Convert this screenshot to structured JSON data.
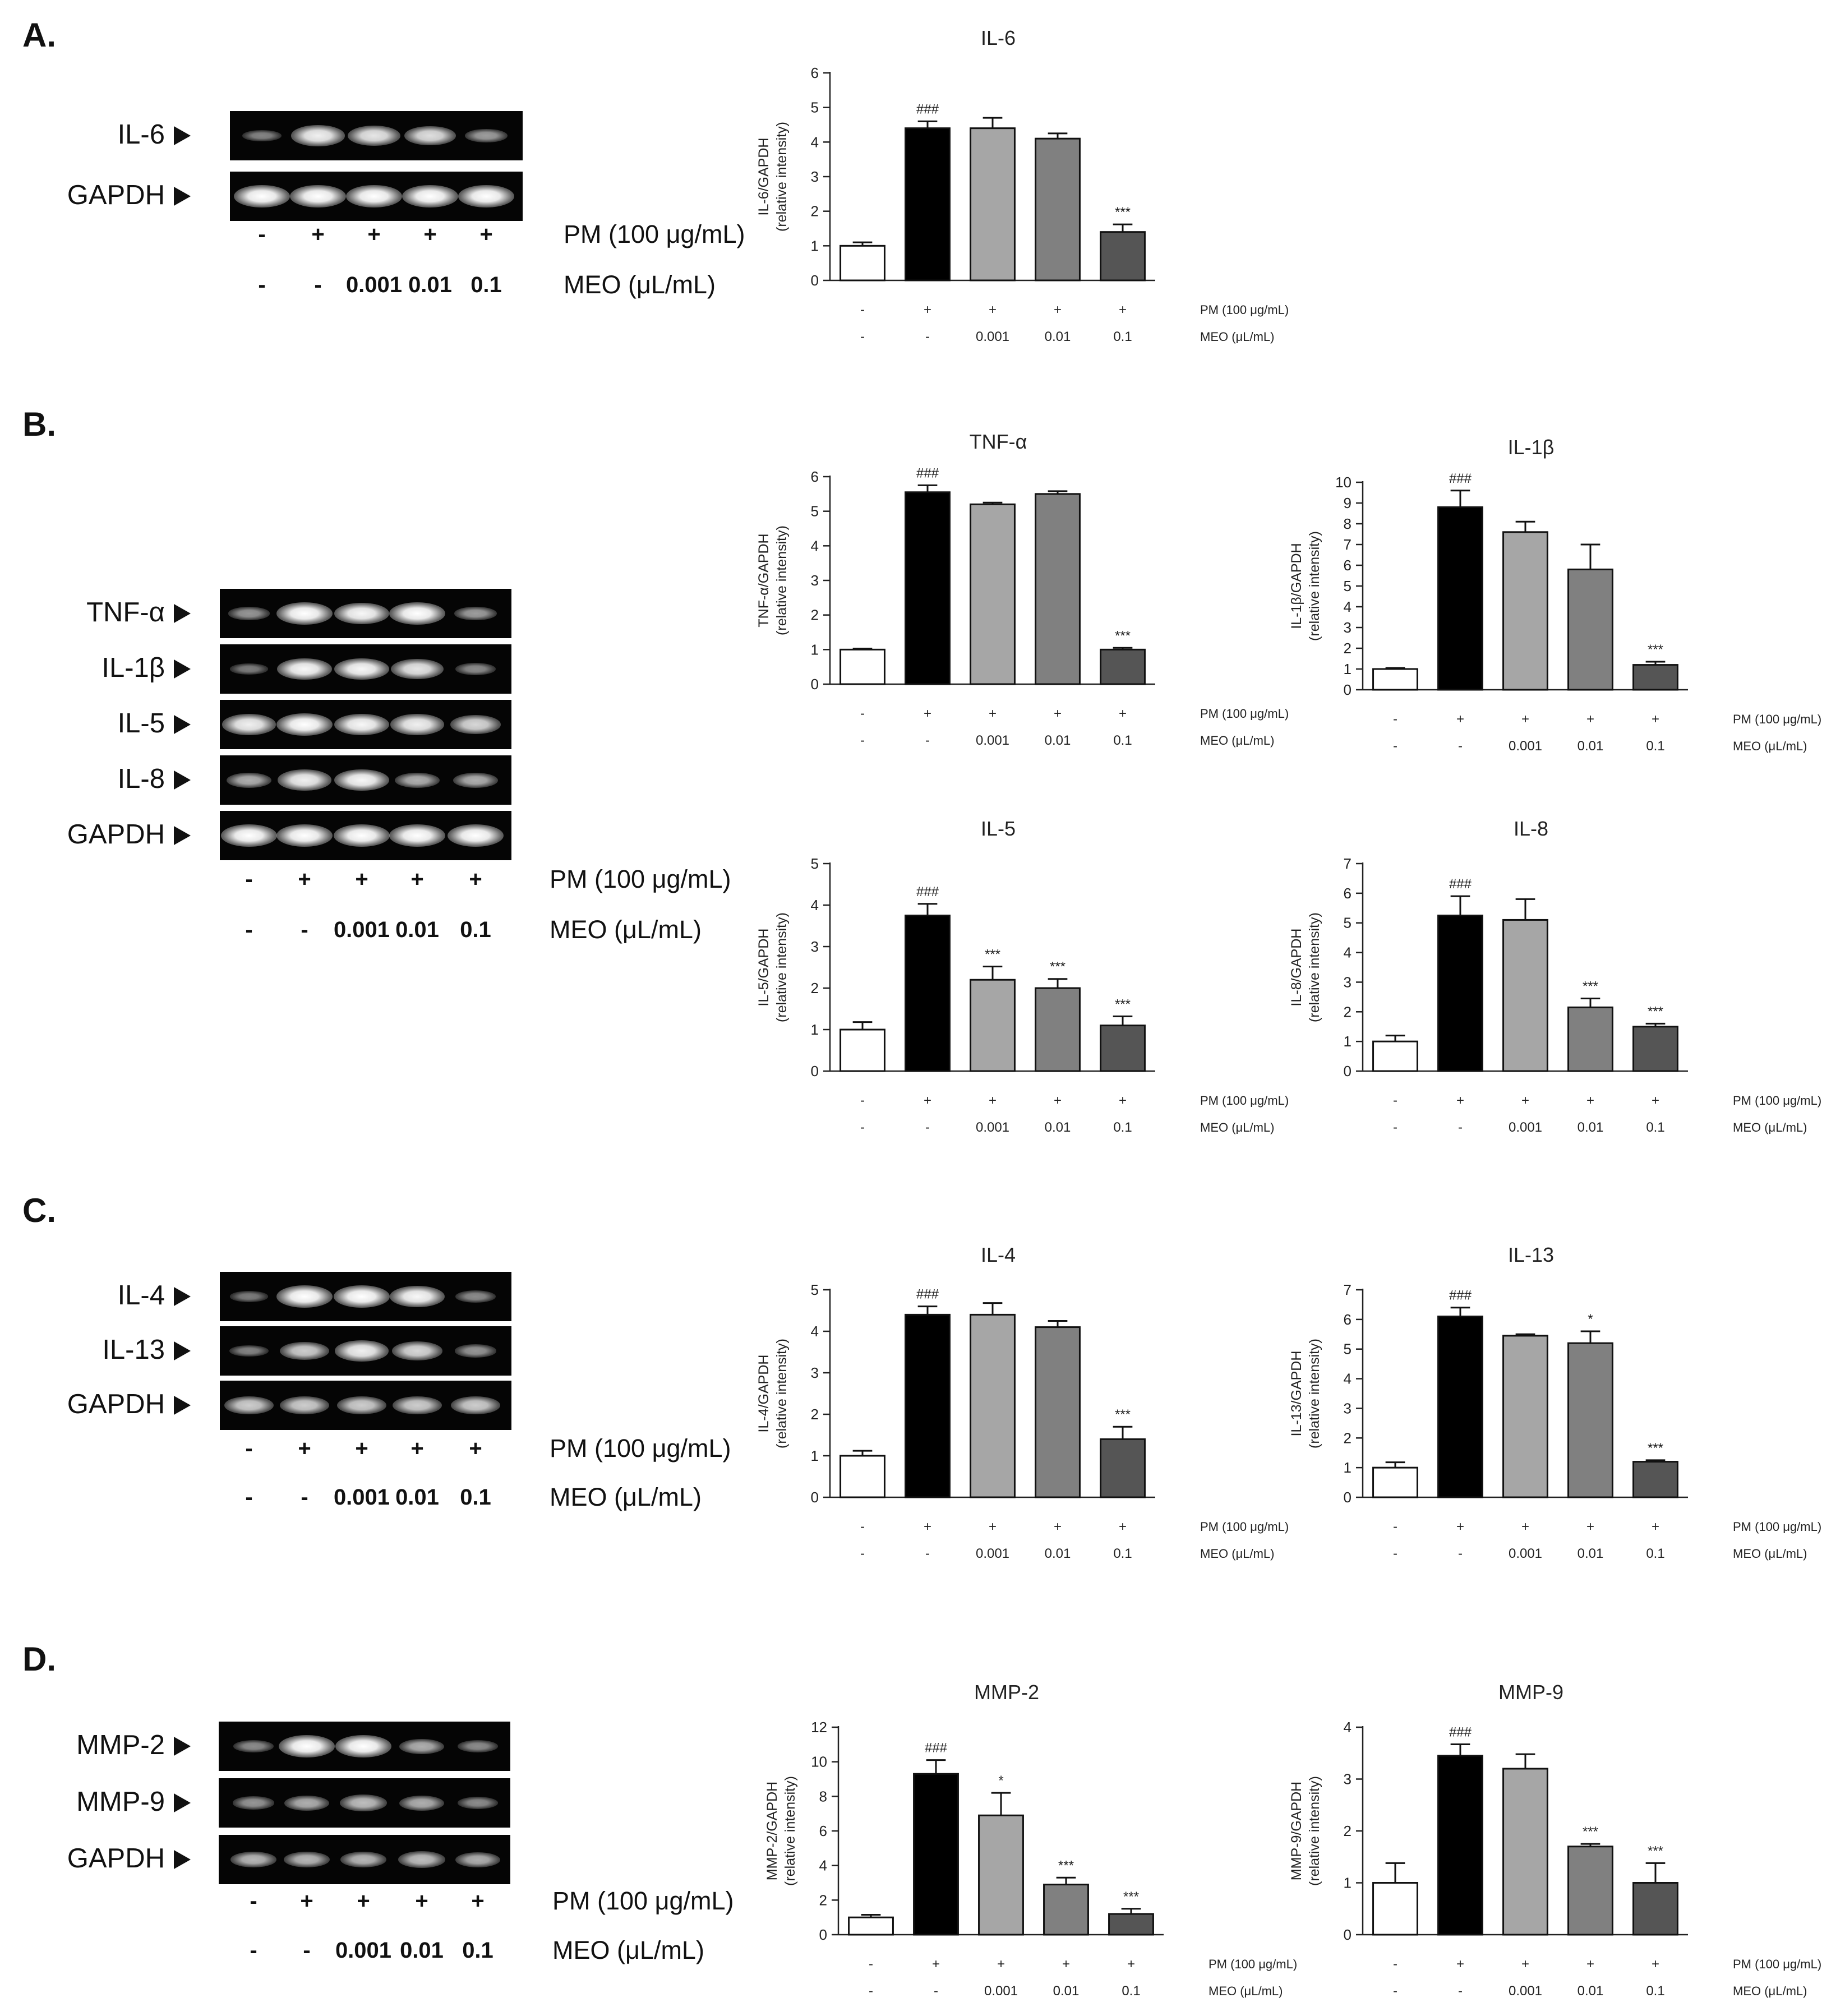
{
  "panels": [
    {
      "label": "A."
    },
    {
      "label": "B."
    },
    {
      "label": "C."
    },
    {
      "label": "D."
    }
  ],
  "gel_conditions": {
    "pm_signs": [
      "-",
      "+",
      "+",
      "+",
      "+"
    ],
    "meo_values": [
      "-",
      "-",
      "0.001",
      "0.01",
      "0.1"
    ],
    "pm_label": "PM (100 μg/mL)",
    "meo_label": "MEO (μL/mL)"
  },
  "chart_conditions": {
    "pm_signs": [
      "-",
      "+",
      "+",
      "+",
      "+"
    ],
    "meo_values": [
      "-",
      "-",
      "0.001",
      "0.01",
      "0.1"
    ],
    "pm_label": "PM (100 μg/mL)",
    "meo_label": "MEO (μL/mL)"
  },
  "gels": [
    {
      "id": "gel-a",
      "bands": [
        {
          "name": "IL-6",
          "intensity": [
            0.25,
            0.9,
            0.85,
            0.8,
            0.4
          ]
        },
        {
          "name": "GAPDH",
          "intensity": [
            1,
            1,
            1,
            1,
            1
          ]
        }
      ]
    },
    {
      "id": "gel-b",
      "bands": [
        {
          "name": "TNF-α",
          "intensity": [
            0.35,
            1,
            0.95,
            1,
            0.4
          ]
        },
        {
          "name": "IL-1β",
          "intensity": [
            0.2,
            0.95,
            0.95,
            0.85,
            0.3
          ]
        },
        {
          "name": "IL-5",
          "intensity": [
            0.9,
            1,
            0.95,
            0.9,
            0.75
          ]
        },
        {
          "name": "IL-8",
          "intensity": [
            0.5,
            0.9,
            0.95,
            0.5,
            0.5
          ]
        },
        {
          "name": "GAPDH",
          "intensity": [
            1,
            1,
            1,
            1,
            1
          ]
        }
      ]
    },
    {
      "id": "gel-c",
      "bands": [
        {
          "name": "IL-4",
          "intensity": [
            0.2,
            1,
            1,
            0.95,
            0.3
          ]
        },
        {
          "name": "IL-13",
          "intensity": [
            0.25,
            0.7,
            0.9,
            0.75,
            0.35
          ]
        },
        {
          "name": "GAPDH",
          "intensity": [
            0.7,
            0.7,
            0.7,
            0.7,
            0.7
          ]
        }
      ]
    },
    {
      "id": "gel-d",
      "bands": [
        {
          "name": "MMP-2",
          "intensity": [
            0.3,
            1,
            1,
            0.5,
            0.3
          ]
        },
        {
          "name": "MMP-9",
          "intensity": [
            0.35,
            0.5,
            0.6,
            0.5,
            0.3
          ]
        },
        {
          "name": "GAPDH",
          "intensity": [
            0.55,
            0.55,
            0.55,
            0.6,
            0.5
          ]
        }
      ]
    }
  ],
  "bar_colors": [
    "#ffffff",
    "#000000",
    "#a6a6a6",
    "#808080",
    "#555555"
  ],
  "chart_data": [
    {
      "type": "bar",
      "title": "IL-6",
      "ylabel": [
        "IL-6/GAPDH",
        "(relative intensity)"
      ],
      "ylim": [
        0,
        6
      ],
      "yticks": [
        0,
        1,
        2,
        3,
        4,
        5,
        6
      ],
      "values": [
        1.0,
        4.4,
        4.4,
        4.1,
        1.4
      ],
      "errors": [
        0.1,
        0.2,
        0.3,
        0.15,
        0.22
      ],
      "annotations": [
        "",
        "###",
        "",
        "",
        "***"
      ]
    },
    {
      "type": "bar",
      "title": "TNF-α",
      "ylabel": [
        "TNF-α/GAPDH",
        "(relative intensity)"
      ],
      "ylim": [
        0,
        6
      ],
      "yticks": [
        0,
        1,
        2,
        3,
        4,
        5,
        6
      ],
      "values": [
        1.0,
        5.55,
        5.2,
        5.5,
        1.0
      ],
      "errors": [
        0.03,
        0.2,
        0.05,
        0.08,
        0.05
      ],
      "annotations": [
        "",
        "###",
        "",
        "",
        "***"
      ]
    },
    {
      "type": "bar",
      "title": "IL-1β",
      "ylabel": [
        "IL-1β/GAPDH",
        "(relative intensity)"
      ],
      "ylim": [
        0,
        10
      ],
      "yticks": [
        0,
        1,
        2,
        3,
        4,
        5,
        6,
        7,
        8,
        9,
        10
      ],
      "values": [
        1.0,
        8.8,
        7.6,
        5.8,
        1.2
      ],
      "errors": [
        0.05,
        0.8,
        0.5,
        1.2,
        0.15
      ],
      "annotations": [
        "",
        "###",
        "",
        "",
        "***"
      ]
    },
    {
      "type": "bar",
      "title": "IL-5",
      "ylabel": [
        "IL-5/GAPDH",
        "(relative intensity)"
      ],
      "ylim": [
        0,
        5
      ],
      "yticks": [
        0,
        1,
        2,
        3,
        4,
        5
      ],
      "values": [
        1.0,
        3.75,
        2.2,
        2.0,
        1.1
      ],
      "errors": [
        0.18,
        0.28,
        0.32,
        0.22,
        0.22
      ],
      "annotations": [
        "",
        "###",
        "***",
        "***",
        "***"
      ]
    },
    {
      "type": "bar",
      "title": "IL-8",
      "ylabel": [
        "IL-8/GAPDH",
        "(relative intensity)"
      ],
      "ylim": [
        0,
        7
      ],
      "yticks": [
        0,
        1,
        2,
        3,
        4,
        5,
        6,
        7
      ],
      "values": [
        1.0,
        5.25,
        5.1,
        2.15,
        1.5
      ],
      "errors": [
        0.2,
        0.65,
        0.7,
        0.3,
        0.1
      ],
      "annotations": [
        "",
        "###",
        "",
        "***",
        "***"
      ]
    },
    {
      "type": "bar",
      "title": "IL-4",
      "ylabel": [
        "IL-4/GAPDH",
        "(relative intensity)"
      ],
      "ylim": [
        0,
        5
      ],
      "yticks": [
        0,
        1,
        2,
        3,
        4,
        5
      ],
      "values": [
        1.0,
        4.4,
        4.4,
        4.1,
        1.4
      ],
      "errors": [
        0.12,
        0.2,
        0.28,
        0.15,
        0.3
      ],
      "annotations": [
        "",
        "###",
        "",
        "",
        "***"
      ]
    },
    {
      "type": "bar",
      "title": "IL-13",
      "ylabel": [
        "IL-13/GAPDH",
        "(relative intensity)"
      ],
      "ylim": [
        0,
        7
      ],
      "yticks": [
        0,
        1,
        2,
        3,
        4,
        5,
        6,
        7
      ],
      "values": [
        1.0,
        6.1,
        5.45,
        5.2,
        1.2
      ],
      "errors": [
        0.18,
        0.3,
        0.05,
        0.4,
        0.05
      ],
      "annotations": [
        "",
        "###",
        "",
        "*",
        "***"
      ]
    },
    {
      "type": "bar",
      "title": "MMP-2",
      "ylabel": [
        "MMP-2/GAPDH",
        "(relative intensity)"
      ],
      "ylim": [
        0,
        12
      ],
      "yticks": [
        0,
        2,
        4,
        6,
        8,
        10,
        12
      ],
      "values": [
        1.0,
        9.3,
        6.9,
        2.9,
        1.2
      ],
      "errors": [
        0.15,
        0.8,
        1.3,
        0.4,
        0.3
      ],
      "annotations": [
        "",
        "###",
        "*",
        "***",
        "***"
      ]
    },
    {
      "type": "bar",
      "title": "MMP-9",
      "ylabel": [
        "MMP-9/GAPDH",
        "(relative intensity)"
      ],
      "ylim": [
        0,
        4
      ],
      "yticks": [
        0,
        1,
        2,
        3,
        4
      ],
      "values": [
        1.0,
        3.45,
        3.2,
        1.7,
        1.0
      ],
      "errors": [
        0.38,
        0.22,
        0.28,
        0.05,
        0.38
      ],
      "annotations": [
        "",
        "###",
        "",
        "***",
        "***"
      ]
    }
  ]
}
